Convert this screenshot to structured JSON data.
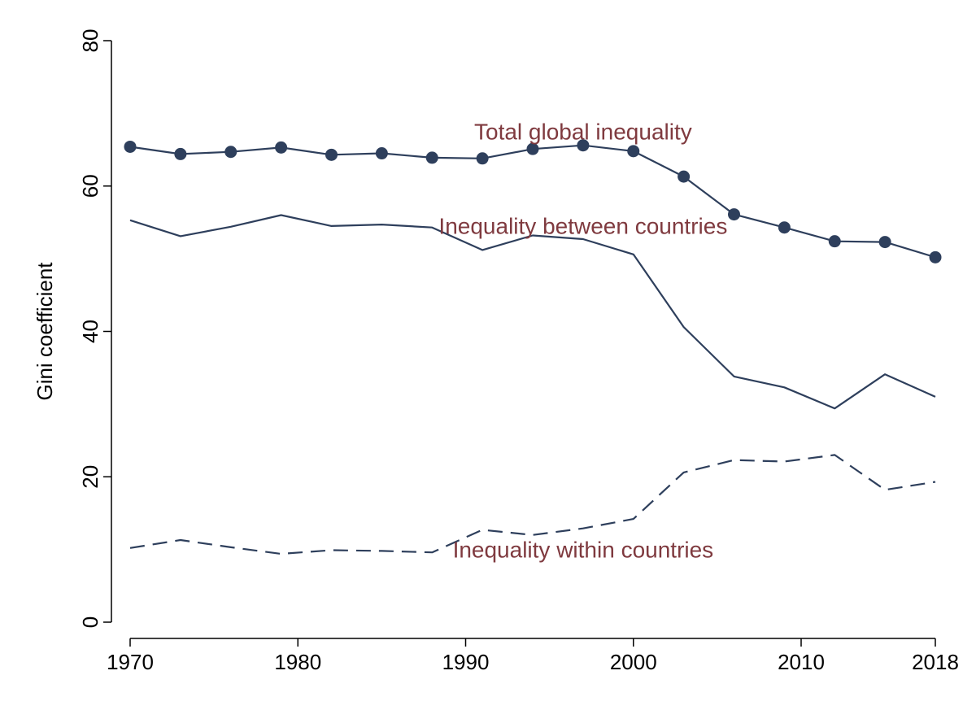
{
  "chart_data": {
    "type": "line",
    "title": "",
    "xlabel": "",
    "ylabel": "Gini coefficient",
    "xlim": [
      1969,
      2019
    ],
    "ylim": [
      0,
      80
    ],
    "x_ticks": [
      1970,
      1980,
      1990,
      2000,
      2010,
      2018
    ],
    "y_ticks": [
      0,
      20,
      40,
      60,
      80
    ],
    "grid": false,
    "legend": "none (direct labels)",
    "line_color": "#2e3f5c",
    "label_color": "#7f3a3f",
    "x": [
      1970,
      1973,
      1976,
      1979,
      1982,
      1985,
      1988,
      1991,
      1994,
      1997,
      2000,
      2003,
      2006,
      2009,
      2012,
      2015,
      2018
    ],
    "series": [
      {
        "name": "Total global inequality",
        "style": "solid-markers",
        "values": [
          65.4,
          64.4,
          64.7,
          65.3,
          64.3,
          64.5,
          63.9,
          63.8,
          65.1,
          65.6,
          64.8,
          61.3,
          56.1,
          54.3,
          52.4,
          52.3,
          50.2
        ]
      },
      {
        "name": "Inequality between countries",
        "style": "solid",
        "values": [
          55.3,
          53.1,
          54.4,
          56.0,
          54.5,
          54.7,
          54.3,
          51.2,
          53.2,
          52.7,
          50.6,
          40.6,
          33.8,
          32.3,
          29.4,
          34.1,
          31.0
        ]
      },
      {
        "name": "Inequality within countries",
        "style": "dashed",
        "values": [
          10.2,
          11.3,
          10.3,
          9.4,
          9.9,
          9.8,
          9.6,
          12.7,
          12.0,
          12.9,
          14.2,
          20.6,
          22.3,
          22.1,
          23.0,
          18.2,
          19.3
        ]
      }
    ],
    "annotations": [
      {
        "text": "Total global inequality",
        "x": 1997,
        "y": 67.5
      },
      {
        "text": "Inequality between countries",
        "x": 1997,
        "y": 54.5
      },
      {
        "text": "Inequality within countries",
        "x": 1997,
        "y": 10.0
      }
    ]
  }
}
